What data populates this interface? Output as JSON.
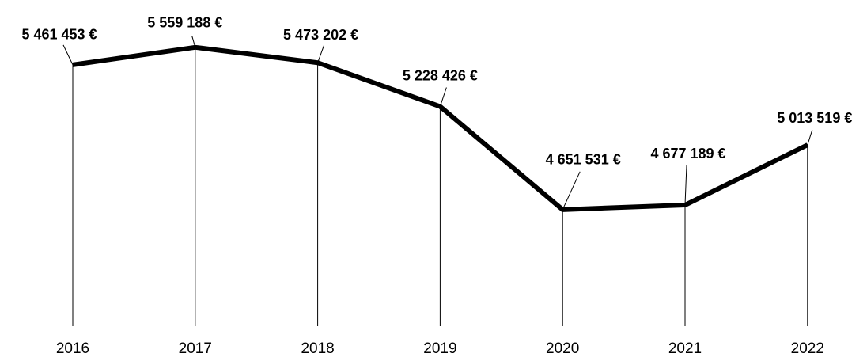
{
  "chart_data": {
    "type": "line",
    "categories": [
      "2016",
      "2017",
      "2018",
      "2019",
      "2020",
      "2021",
      "2022"
    ],
    "values": [
      5461453,
      5559188,
      5473202,
      5228426,
      4651531,
      4677189,
      5013519
    ],
    "value_labels": [
      "5 461 453 €",
      "5 559 188 €",
      "5 473 202 €",
      "5 228 426 €",
      "4 651 531 €",
      "4 677 189 €",
      "5 013 519 €"
    ],
    "color": "#000000",
    "ylim": [
      4000000,
      5700000
    ]
  }
}
